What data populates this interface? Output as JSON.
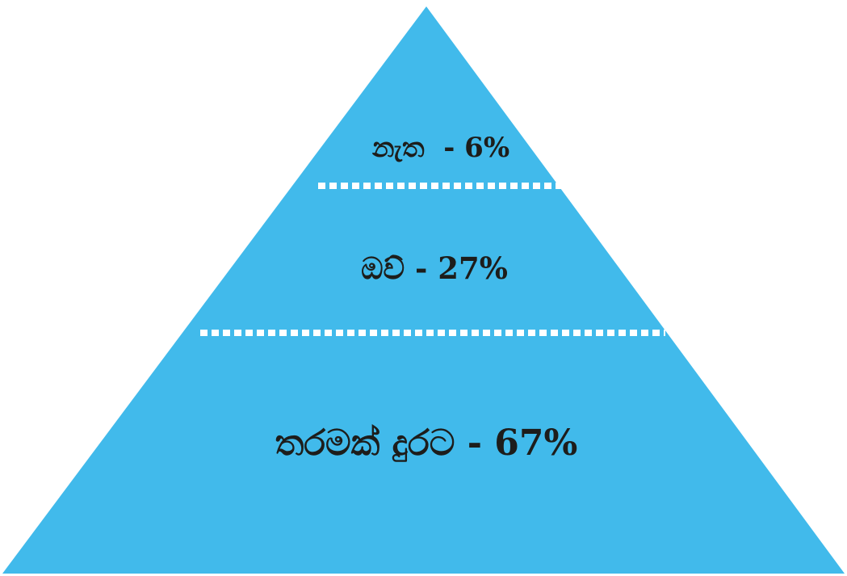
{
  "colors": {
    "pyramid_fill": "#41baeb",
    "divider": "#ffffff",
    "text": "#1d1d1b",
    "background": "#ffffff"
  },
  "tiers": [
    {
      "label": "නැත  - 6%",
      "value": 6
    },
    {
      "label": "ඔව් - 27%",
      "value": 27
    },
    {
      "label": "තරමක් දුරට - 67%",
      "value": 67
    }
  ]
}
